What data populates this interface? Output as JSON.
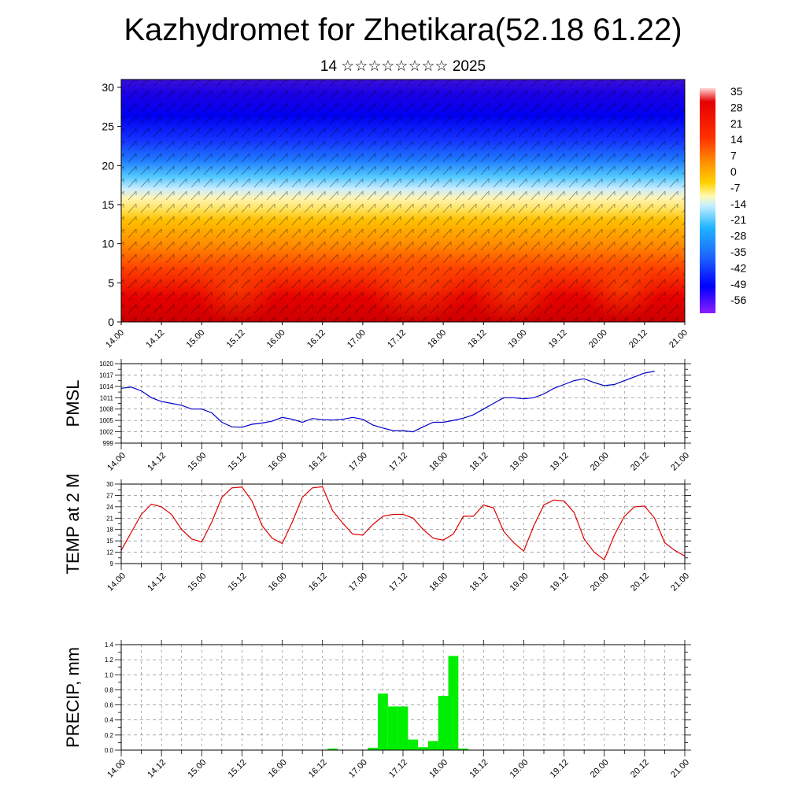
{
  "header": {
    "title": "Kazhydromet for Zhetikara(52.18 61.22)",
    "subtitle": "14 ☆☆☆☆☆☆☆☆ 2025"
  },
  "colors": {
    "pmsl_line": "#0000cc",
    "temp_line": "#dd0000",
    "precip_bar": "#00ee00",
    "colorbar": [
      "#ffd6d6",
      "#e60000",
      "#ff4500",
      "#ff8c00",
      "#ffd200",
      "#fffab4",
      "#c8f0ff",
      "#1eb4ff",
      "#1e64ff",
      "#0000ff",
      "#8c1eff"
    ]
  },
  "chart_data": [
    {
      "type": "heatmap",
      "panel": "cross-section",
      "x_tick_labels": [
        "14.00",
        "14.12",
        "15.00",
        "15.12",
        "16.00",
        "16.12",
        "17.00",
        "17.12",
        "18.00",
        "18.12",
        "19.00",
        "19.12",
        "20.00",
        "20.12",
        "21.00"
      ],
      "y_ticks": [
        0,
        5,
        10,
        15,
        20,
        25,
        30
      ],
      "ylim": [
        0,
        31
      ],
      "colorbar_labels": [
        "35",
        "28",
        "21",
        "14",
        "7",
        "0",
        "-7",
        "-14",
        "-21",
        "-28",
        "-35",
        "-42",
        "-49",
        "-56"
      ],
      "grid": false
    },
    {
      "type": "line",
      "panel": "pmsl",
      "ylabel": "PMSL",
      "x_tick_labels": [
        "14.00",
        "14.12",
        "15.00",
        "15.12",
        "16.00",
        "16.12",
        "17.00",
        "17.12",
        "18.00",
        "18.12",
        "19.00",
        "19.12",
        "20.00",
        "20.12",
        "21.00"
      ],
      "y_ticks": [
        999,
        1002,
        1005,
        1008,
        1011,
        1014,
        1017,
        1020
      ],
      "ylim": [
        999,
        1020
      ],
      "grid": true,
      "x": [
        0,
        3,
        6,
        9,
        12,
        15,
        18,
        21,
        24,
        27,
        30,
        33,
        36,
        39,
        42,
        45,
        48,
        51,
        54,
        57,
        60,
        63,
        66,
        69,
        72,
        75,
        78,
        81,
        84,
        87,
        90,
        93,
        96,
        99,
        102,
        105,
        108,
        111,
        114,
        117,
        120,
        123,
        126,
        129,
        132,
        135,
        138,
        141,
        144,
        147,
        150,
        153,
        156,
        159,
        162,
        165,
        168
      ],
      "values": [
        1013.5,
        1013.8,
        1012.8,
        1011,
        1010,
        1009.5,
        1009,
        1008,
        1008,
        1007,
        1004.5,
        1003.3,
        1003.2,
        1004,
        1004.3,
        1004.8,
        1005.8,
        1005.3,
        1004.5,
        1005.5,
        1005.2,
        1005.1,
        1005.3,
        1005.8,
        1005.3,
        1003.8,
        1003,
        1002.3,
        1002.3,
        1002,
        1003.3,
        1004.5,
        1004.5,
        1005,
        1005.6,
        1006.5,
        1008,
        1009.5,
        1011,
        1011,
        1010.7,
        1011,
        1012,
        1013.5,
        1014.5,
        1015.5,
        1016,
        1015,
        1014.2,
        1014.5,
        1015.5,
        1016.5,
        1017.5,
        1018,
        null,
        null,
        null
      ]
    },
    {
      "type": "line",
      "panel": "temp",
      "ylabel": "TEMP at 2 M",
      "x_tick_labels": [
        "14.00",
        "14.12",
        "15.00",
        "15.12",
        "16.00",
        "16.12",
        "17.00",
        "17.12",
        "18.00",
        "18.12",
        "19.00",
        "19.12",
        "20.00",
        "20.12",
        "21.00"
      ],
      "y_ticks": [
        9,
        12,
        15,
        18,
        21,
        24,
        27,
        30
      ],
      "ylim": [
        9,
        30
      ],
      "grid": true,
      "x": [
        0,
        6,
        9,
        12,
        15,
        18,
        21,
        24,
        27,
        30,
        33,
        36,
        39,
        42,
        45,
        48,
        51,
        54,
        57,
        60,
        63,
        66,
        69,
        72,
        75,
        78,
        81,
        84,
        87,
        90,
        93,
        96,
        99,
        102,
        105,
        108,
        111,
        114,
        117,
        120,
        123,
        126,
        129,
        132,
        135,
        138,
        141,
        144,
        147,
        150,
        153,
        156,
        159,
        162,
        165,
        168
      ],
      "values": [
        12.5,
        22,
        24.7,
        24,
        22,
        18,
        15.5,
        14.7,
        20,
        26.5,
        29,
        29.2,
        25.5,
        19,
        15.7,
        14.3,
        20,
        26.5,
        29,
        29.3,
        23,
        19.7,
        16.8,
        16.5,
        19.3,
        21.5,
        22,
        22,
        21,
        18,
        15.7,
        15.2,
        16.8,
        21.5,
        21.5,
        24.5,
        23.7,
        17.5,
        14.5,
        12.3,
        19,
        24.5,
        25.8,
        25.5,
        22.5,
        15.5,
        12,
        10,
        16.5,
        21.5,
        24,
        24.2,
        21,
        14.5,
        12.5,
        11
      ]
    },
    {
      "type": "bar",
      "panel": "precip",
      "ylabel": "PRECIP, mm",
      "x_tick_labels": [
        "14.00",
        "14.12",
        "15.00",
        "15.12",
        "16.00",
        "16.12",
        "17.00",
        "17.12",
        "18.00",
        "18.12",
        "19.00",
        "19.12",
        "20.00",
        "20.12",
        "21.00"
      ],
      "y_ticks": [
        "0.0",
        "0.2",
        "0.4",
        "0.6",
        "0.8",
        "1.0",
        "1.2",
        "1.4"
      ],
      "ylim": [
        0,
        1.4
      ],
      "grid": true,
      "x": [
        63,
        75,
        78,
        81,
        84,
        87,
        90,
        93,
        96,
        99,
        102
      ],
      "values": [
        0.02,
        0.03,
        0.75,
        0.58,
        0.58,
        0.14,
        0.04,
        0.12,
        0.72,
        1.25,
        0.02
      ]
    }
  ]
}
